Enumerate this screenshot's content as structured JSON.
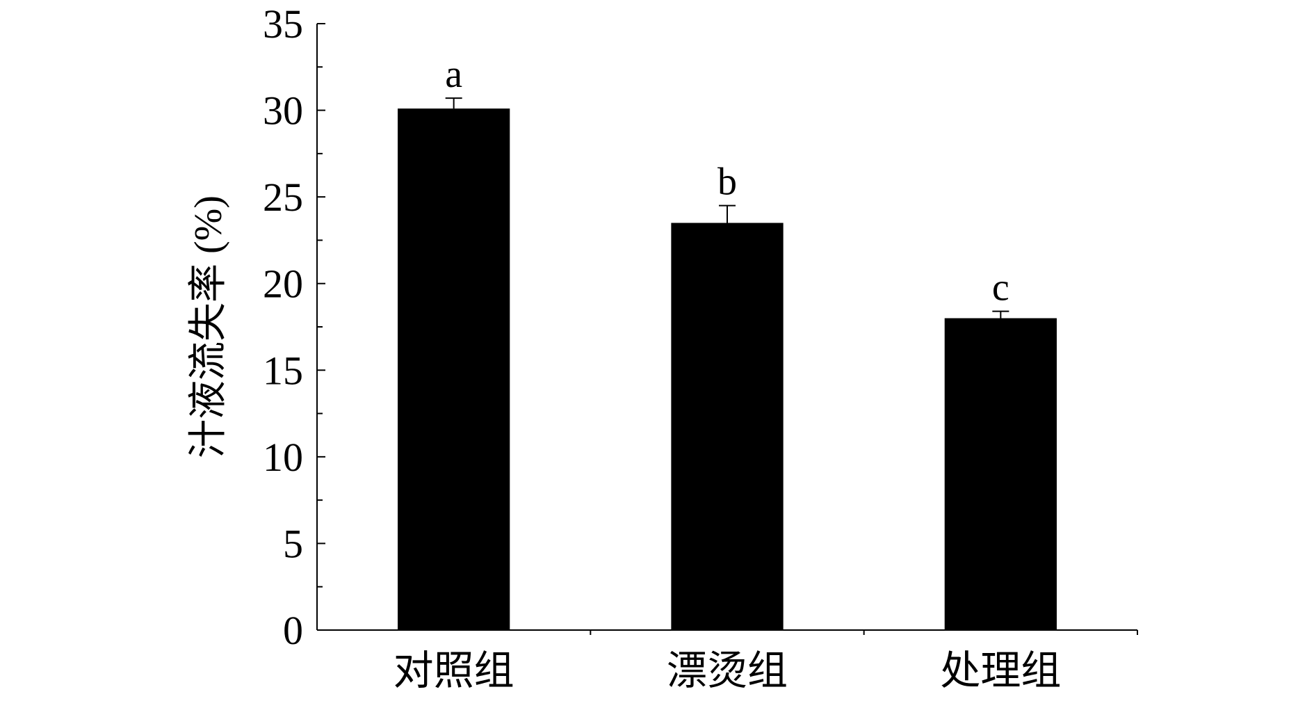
{
  "chart_data": {
    "type": "bar",
    "y_label": "汁液流失率 (%)",
    "categories": [
      "对照组",
      "漂烫组",
      "处理组"
    ],
    "values": [
      30.1,
      23.5,
      18.0
    ],
    "errors": [
      0.6,
      1.0,
      0.4
    ],
    "annotations": [
      "a",
      "b",
      "c"
    ],
    "color": "#000000",
    "ylim": [
      0,
      35
    ],
    "yticks": [
      0,
      5,
      10,
      15,
      20,
      25,
      30,
      35
    ],
    "grid": false
  }
}
